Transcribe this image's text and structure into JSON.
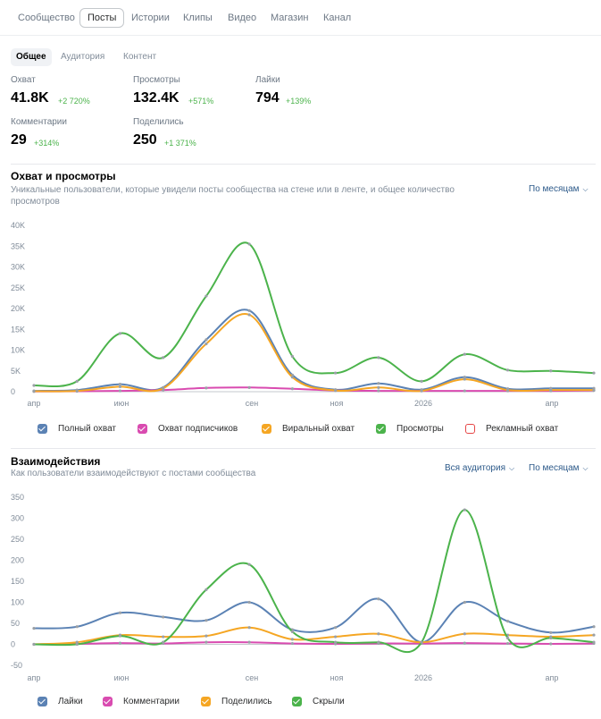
{
  "top_tabs": [
    {
      "label": "Сообщество",
      "active": false
    },
    {
      "label": "Посты",
      "active": true
    },
    {
      "label": "Истории",
      "active": false
    },
    {
      "label": "Клипы",
      "active": false
    },
    {
      "label": "Видео",
      "active": false
    },
    {
      "label": "Магазин",
      "active": false
    },
    {
      "label": "Канал",
      "active": false
    }
  ],
  "sub_tabs": [
    {
      "label": "Общее",
      "active": true
    },
    {
      "label": "Аудитория",
      "active": false
    },
    {
      "label": "Контент",
      "active": false
    }
  ],
  "metrics": [
    {
      "label": "Охват",
      "value": "41.8K",
      "delta": "+2 720%"
    },
    {
      "label": "Просмотры",
      "value": "132.4K",
      "delta": "+571%"
    },
    {
      "label": "Лайки",
      "value": "794",
      "delta": "+139%"
    },
    {
      "label": "Комментарии",
      "value": "29",
      "delta": "+314%"
    },
    {
      "label": "Поделились",
      "value": "250",
      "delta": "+1 371%"
    }
  ],
  "reach": {
    "title": "Охват и просмотры",
    "subtitle_line1": "Уникальные пользователи, которые увидели посты сообщества на стене или в ленте, и общее количество",
    "subtitle_line2": "просмотров",
    "period_dropdown": "По месяцам",
    "legend": [
      {
        "label": "Полный охват",
        "color": "#5b82b4",
        "checked": true
      },
      {
        "label": "Охват подписчиков",
        "color": "#d94bb0",
        "checked": true
      },
      {
        "label": "Виральный охват",
        "color": "#f5a623",
        "checked": true
      },
      {
        "label": "Просмотры",
        "color": "#4bb34b",
        "checked": true
      },
      {
        "label": "Рекламный охват",
        "color": "#e64646",
        "checked": false
      }
    ]
  },
  "engagement": {
    "title": "Взаимодействия",
    "subtitle": "Как пользователи взаимодействуют с постами сообщества",
    "audience_dropdown": "Вся аудитория",
    "period_dropdown": "По месяцам",
    "legend": [
      {
        "label": "Лайки",
        "color": "#5b82b4",
        "checked": true
      },
      {
        "label": "Комментарии",
        "color": "#d94bb0",
        "checked": true
      },
      {
        "label": "Поделились",
        "color": "#f5a623",
        "checked": true
      },
      {
        "label": "Скрыли",
        "color": "#4bb34b",
        "checked": true
      }
    ]
  },
  "chart_data": [
    {
      "type": "line",
      "title": "Охват и просмотры",
      "x_tick_labels": [
        "апр",
        "июн",
        "сен",
        "ноя",
        "2026",
        "апр"
      ],
      "y_tick_labels": [
        "0",
        "5K",
        "10K",
        "15K",
        "20K",
        "25K",
        "30K",
        "35K",
        "40K"
      ],
      "ylim": [
        0,
        40000
      ],
      "x": [
        0,
        1,
        2,
        3,
        4,
        5,
        6,
        7,
        8,
        9,
        10,
        11,
        12,
        13
      ],
      "series": [
        {
          "name": "Полный охват",
          "color": "#5b82b4",
          "values": [
            200,
            400,
            1800,
            1000,
            12500,
            19500,
            4000,
            500,
            2000,
            500,
            3500,
            700,
            800,
            800
          ]
        },
        {
          "name": "Охват подписчиков",
          "color": "#d94bb0",
          "values": [
            50,
            100,
            200,
            400,
            900,
            1000,
            700,
            300,
            200,
            200,
            200,
            200,
            200,
            300
          ]
        },
        {
          "name": "Виральный охват",
          "color": "#f5a623",
          "values": [
            100,
            200,
            1200,
            800,
            11500,
            18500,
            3500,
            300,
            1000,
            200,
            3000,
            400,
            400,
            400
          ]
        },
        {
          "name": "Просмотры",
          "color": "#4bb34b",
          "values": [
            1500,
            2500,
            14000,
            8200,
            23000,
            35500,
            8500,
            4500,
            8200,
            2500,
            9000,
            5200,
            5000,
            4500
          ]
        }
      ]
    },
    {
      "type": "line",
      "title": "Взаимодействия",
      "x_tick_labels": [
        "апр",
        "июн",
        "сен",
        "ноя",
        "2026",
        "апр"
      ],
      "y_tick_labels": [
        "-50",
        "0",
        "50",
        "100",
        "150",
        "200",
        "250",
        "300",
        "350"
      ],
      "ylim": [
        -50,
        350
      ],
      "x": [
        0,
        1,
        2,
        3,
        4,
        5,
        6,
        7,
        8,
        9,
        10,
        11,
        12,
        13
      ],
      "series": [
        {
          "name": "Лайки",
          "color": "#5b82b4",
          "values": [
            38,
            42,
            75,
            65,
            57,
            100,
            35,
            40,
            108,
            5,
            100,
            55,
            28,
            42
          ]
        },
        {
          "name": "Комментарии",
          "color": "#d94bb0",
          "values": [
            0,
            1,
            3,
            2,
            5,
            5,
            2,
            1,
            2,
            2,
            3,
            2,
            1,
            2
          ]
        },
        {
          "name": "Поделились",
          "color": "#f5a623",
          "values": [
            0,
            5,
            22,
            18,
            20,
            40,
            12,
            18,
            25,
            5,
            25,
            22,
            18,
            22
          ]
        },
        {
          "name": "Скрыли",
          "color": "#4bb34b",
          "values": [
            0,
            0,
            20,
            5,
            130,
            190,
            30,
            5,
            5,
            5,
            320,
            15,
            15,
            5
          ]
        }
      ]
    }
  ]
}
